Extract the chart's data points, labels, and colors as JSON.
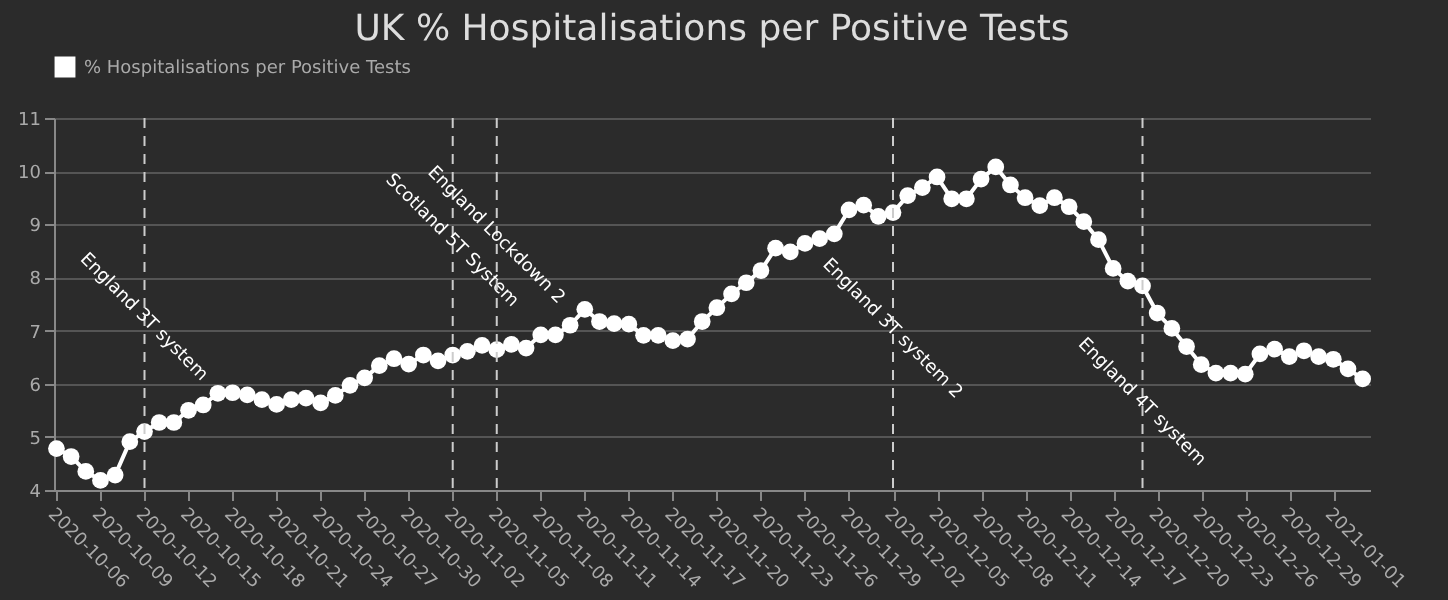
{
  "chart_data": {
    "type": "line",
    "title": "UK % Hospitalisations per Positive Tests",
    "x": [
      "2020-10-06",
      "2020-10-07",
      "2020-10-08",
      "2020-10-09",
      "2020-10-10",
      "2020-10-11",
      "2020-10-12",
      "2020-10-13",
      "2020-10-14",
      "2020-10-15",
      "2020-10-16",
      "2020-10-17",
      "2020-10-18",
      "2020-10-19",
      "2020-10-20",
      "2020-10-21",
      "2020-10-22",
      "2020-10-23",
      "2020-10-24",
      "2020-10-25",
      "2020-10-26",
      "2020-10-27",
      "2020-10-28",
      "2020-10-29",
      "2020-10-30",
      "2020-10-31",
      "2020-11-01",
      "2020-11-02",
      "2020-11-03",
      "2020-11-04",
      "2020-11-05",
      "2020-11-06",
      "2020-11-07",
      "2020-11-08",
      "2020-11-09",
      "2020-11-10",
      "2020-11-11",
      "2020-11-12",
      "2020-11-13",
      "2020-11-14",
      "2020-11-15",
      "2020-11-16",
      "2020-11-17",
      "2020-11-18",
      "2020-11-19",
      "2020-11-20",
      "2020-11-21",
      "2020-11-22",
      "2020-11-23",
      "2020-11-24",
      "2020-11-25",
      "2020-11-26",
      "2020-11-27",
      "2020-11-28",
      "2020-11-29",
      "2020-11-30",
      "2020-12-01",
      "2020-12-02",
      "2020-12-03",
      "2020-12-04",
      "2020-12-05",
      "2020-12-06",
      "2020-12-07",
      "2020-12-08",
      "2020-12-09",
      "2020-12-10",
      "2020-12-11",
      "2020-12-12",
      "2020-12-13",
      "2020-12-14",
      "2020-12-15",
      "2020-12-16",
      "2020-12-17",
      "2020-12-18",
      "2020-12-19",
      "2020-12-20",
      "2020-12-21",
      "2020-12-22",
      "2020-12-23",
      "2020-12-24",
      "2020-12-25",
      "2020-12-26",
      "2020-12-27",
      "2020-12-28",
      "2020-12-29",
      "2020-12-30",
      "2020-12-31",
      "2021-01-01",
      "2021-01-02",
      "2021-01-03"
    ],
    "series": [
      {
        "name": "% Hospitalisations per Positive Tests",
        "color": "#ffffff",
        "values": [
          4.78,
          4.63,
          4.35,
          4.18,
          4.28,
          4.91,
          5.1,
          5.27,
          5.27,
          5.5,
          5.6,
          5.82,
          5.83,
          5.79,
          5.7,
          5.61,
          5.7,
          5.73,
          5.64,
          5.78,
          5.97,
          6.11,
          6.34,
          6.47,
          6.37,
          6.54,
          6.43,
          6.54,
          6.61,
          6.72,
          6.64,
          6.74,
          6.67,
          6.92,
          6.92,
          7.1,
          7.4,
          7.17,
          7.13,
          7.12,
          6.91,
          6.91,
          6.81,
          6.84,
          7.17,
          7.43,
          7.69,
          7.9,
          8.13,
          8.55,
          8.48,
          8.64,
          8.73,
          8.82,
          9.27,
          9.36,
          9.15,
          9.22,
          9.54,
          9.69,
          9.89,
          9.48,
          9.48,
          9.85,
          10.08,
          9.74,
          9.5,
          9.35,
          9.5,
          9.33,
          9.05,
          8.71,
          8.17,
          7.93,
          7.84,
          7.33,
          7.04,
          6.7,
          6.36,
          6.2,
          6.2,
          6.18,
          6.56,
          6.65,
          6.51,
          6.62,
          6.51,
          6.46,
          6.28,
          6.09
        ]
      }
    ],
    "xlim": [
      "2020-10-05T20:00",
      "2021-01-03T12:00"
    ],
    "xticks": [
      "2020-10-06",
      "2020-10-09",
      "2020-10-12",
      "2020-10-15",
      "2020-10-18",
      "2020-10-21",
      "2020-10-24",
      "2020-10-27",
      "2020-10-30",
      "2020-11-02",
      "2020-11-05",
      "2020-11-08",
      "2020-11-11",
      "2020-11-14",
      "2020-11-17",
      "2020-11-20",
      "2020-11-23",
      "2020-11-26",
      "2020-11-29",
      "2020-12-02",
      "2020-12-05",
      "2020-12-08",
      "2020-12-11",
      "2020-12-14",
      "2020-12-17",
      "2020-12-20",
      "2020-12-23",
      "2020-12-26",
      "2020-12-29",
      "2021-01-01"
    ],
    "ylim": [
      4,
      11
    ],
    "yticks": [
      4,
      5,
      6,
      7,
      8,
      9,
      10,
      11
    ],
    "ref_lines": [
      {
        "axis": "x",
        "value": "2020-10-12",
        "label": "England 3T system",
        "color": "#cccccc",
        "line_style": "dashed"
      },
      {
        "axis": "x",
        "value": "2020-11-02",
        "label": "Scotland 5T System",
        "color": "#cccccc",
        "line_style": "dashed"
      },
      {
        "axis": "x",
        "value": "2020-11-05",
        "label": "England Lockdown 2",
        "color": "#cccccc",
        "line_style": "dashed"
      },
      {
        "axis": "x",
        "value": "2020-12-02",
        "label": "England 3T system 2",
        "color": "#cccccc",
        "line_style": "dashed"
      },
      {
        "axis": "x",
        "value": "2020-12-19",
        "label": "England 4T system",
        "color": "#cccccc",
        "line_style": "dashed"
      }
    ],
    "grid": "y",
    "legend": "top",
    "marker": "circle",
    "line_style": "solid"
  }
}
